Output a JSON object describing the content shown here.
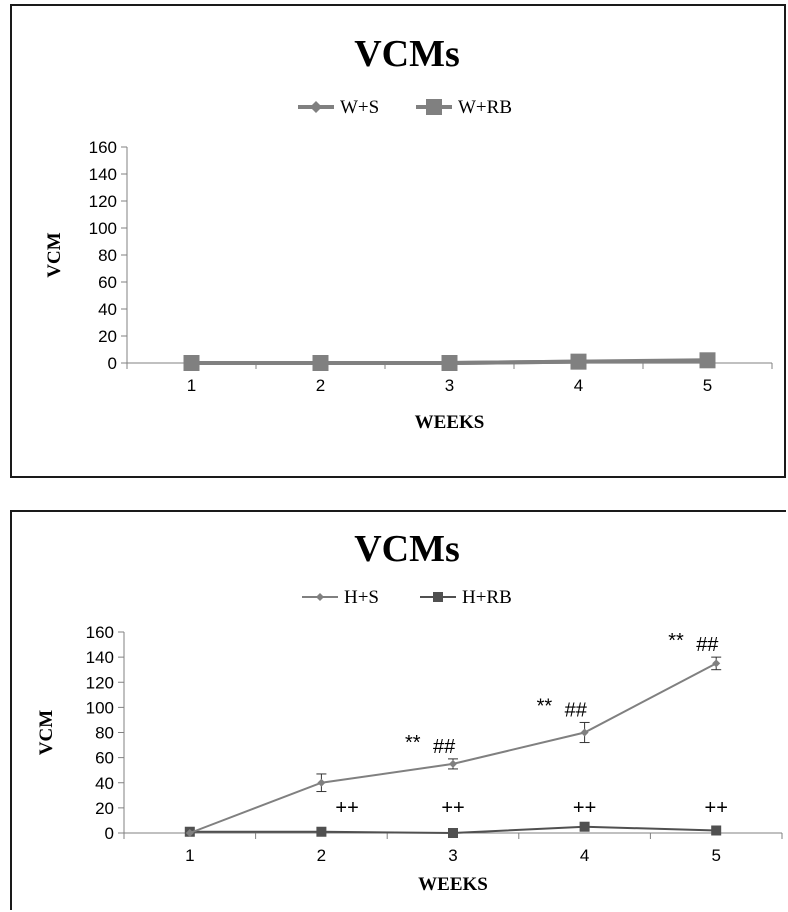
{
  "chart_data": [
    {
      "type": "line",
      "title": "VCMs",
      "xlabel": "WEEKS",
      "ylabel": "VCM",
      "categories": [
        "1",
        "2",
        "3",
        "4",
        "5"
      ],
      "ylim": [
        0,
        160
      ],
      "yticks": [
        "0",
        "20",
        "40",
        "60",
        "80",
        "100",
        "120",
        "140",
        "160"
      ],
      "grid": false,
      "legend_position": "top",
      "series": [
        {
          "name": "W+S",
          "values": [
            0,
            0,
            0,
            1,
            1
          ],
          "marker": "diamond",
          "color": "#808080"
        },
        {
          "name": "W+RB",
          "values": [
            0,
            0,
            0,
            1,
            2
          ],
          "marker": "square",
          "color": "#808080"
        }
      ]
    },
    {
      "type": "line",
      "title": "VCMs",
      "xlabel": "WEEKS",
      "ylabel": "VCM",
      "categories": [
        "1",
        "2",
        "3",
        "4",
        "5"
      ],
      "ylim": [
        0,
        160
      ],
      "yticks": [
        "0",
        "20",
        "40",
        "60",
        "80",
        "100",
        "120",
        "140",
        "160"
      ],
      "grid": false,
      "legend_position": "top",
      "series": [
        {
          "name": "H+S",
          "values": [
            0,
            40,
            55,
            80,
            135
          ],
          "errors": [
            0,
            7,
            4,
            8,
            5
          ],
          "marker": "diamond",
          "color": "#808080"
        },
        {
          "name": "H+RB",
          "values": [
            1,
            1,
            0,
            5,
            2
          ],
          "marker": "square",
          "color": "#505050"
        }
      ],
      "annotations": [
        {
          "category": "3",
          "star": "**",
          "hash": "##"
        },
        {
          "category": "4",
          "star": "**",
          "hash": "##"
        },
        {
          "category": "5",
          "star": "**",
          "hash": "##"
        }
      ],
      "plus_annotations": [
        {
          "category": "2",
          "text": "++"
        },
        {
          "category": "3",
          "text": "++"
        },
        {
          "category": "4",
          "text": "++"
        },
        {
          "category": "5",
          "text": "++"
        }
      ]
    }
  ]
}
